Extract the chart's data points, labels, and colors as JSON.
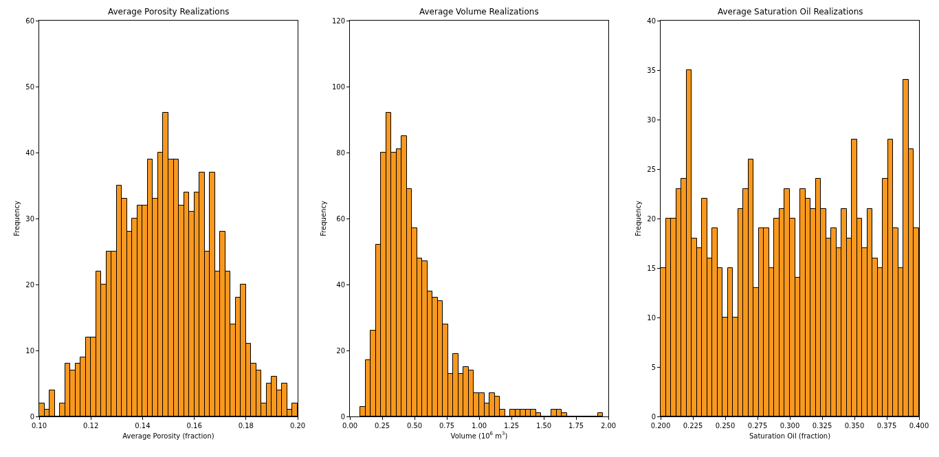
{
  "chart_data": [
    {
      "type": "histogram",
      "title": "Average Porosity Realizations",
      "xlabel": "Average Porosity (fraction)",
      "ylabel": "Frequency",
      "color": "#f8981f",
      "bins": [
        0.1,
        0.102,
        0.104,
        0.106,
        0.108,
        0.11,
        0.112,
        0.114,
        0.116,
        0.118,
        0.12,
        0.122,
        0.124,
        0.126,
        0.128,
        0.13,
        0.132,
        0.134,
        0.136,
        0.138,
        0.14,
        0.142,
        0.144,
        0.146,
        0.148,
        0.15,
        0.152,
        0.154,
        0.156,
        0.158,
        0.16,
        0.162,
        0.164,
        0.166,
        0.168,
        0.17,
        0.172,
        0.174,
        0.176,
        0.178,
        0.18,
        0.182,
        0.184,
        0.186,
        0.188,
        0.19,
        0.192,
        0.194,
        0.196,
        0.198,
        0.2
      ],
      "values": [
        2,
        1,
        4,
        0,
        2,
        8,
        7,
        8,
        9,
        12,
        12,
        22,
        20,
        25,
        25,
        35,
        33,
        28,
        30,
        32,
        32,
        39,
        33,
        40,
        46,
        39,
        39,
        32,
        34,
        31,
        34,
        37,
        25,
        37,
        22,
        28,
        22,
        14,
        18,
        20,
        11,
        8,
        7,
        2,
        5,
        6,
        4,
        5,
        1,
        2
      ],
      "xlim": [
        0.1,
        0.2
      ],
      "xticks": [
        {
          "value": 0.1,
          "label": "0.10"
        },
        0.12,
        0.14,
        0.16,
        0.18,
        {
          "value": 0.2,
          "label": "0.20"
        }
      ],
      "ylim": [
        0,
        60
      ],
      "yticks": [
        0,
        10,
        20,
        30,
        40,
        50,
        60
      ]
    },
    {
      "type": "histogram",
      "title": "Average Volume Realizations",
      "xlabel": "Volume (10$^{6}$ m$^{3}$)",
      "ylabel": "Frequency",
      "color": "#f8981f",
      "bins": [
        0.08,
        0.12,
        0.16,
        0.2,
        0.24,
        0.28,
        0.32,
        0.36,
        0.4,
        0.44,
        0.48,
        0.52,
        0.56,
        0.6,
        0.64,
        0.68,
        0.72,
        0.76,
        0.8,
        0.84,
        0.88,
        0.92,
        0.96,
        1.0,
        1.04,
        1.08,
        1.12,
        1.16,
        1.2,
        1.24,
        1.28,
        1.32,
        1.36,
        1.4,
        1.44,
        1.48,
        1.52,
        1.56,
        1.6,
        1.64,
        1.68,
        1.72,
        1.76,
        1.8,
        1.84,
        1.88,
        1.92,
        1.96
      ],
      "values": [
        3,
        17,
        26,
        52,
        80,
        92,
        80,
        81,
        85,
        69,
        57,
        48,
        47,
        38,
        36,
        35,
        28,
        13,
        19,
        13,
        15,
        14,
        7,
        7,
        4,
        7,
        6,
        2,
        0,
        2,
        2,
        2,
        2,
        2,
        1,
        0,
        0,
        2,
        2,
        1,
        0,
        0,
        0,
        0,
        0,
        0,
        1
      ],
      "xlim": [
        0,
        2
      ],
      "xticks": [
        {
          "value": 0,
          "label": "0.00"
        },
        0.25,
        {
          "value": 0.5,
          "label": "0.50"
        },
        0.75,
        {
          "value": 1,
          "label": "1.00"
        },
        1.25,
        {
          "value": 1.5,
          "label": "1.50"
        },
        1.75,
        {
          "value": 2,
          "label": "2.00"
        }
      ],
      "ylim": [
        0,
        120
      ],
      "yticks": [
        0,
        20,
        40,
        60,
        80,
        100,
        120
      ]
    },
    {
      "type": "histogram",
      "title": "Average Saturation Oil Realizations",
      "xlabel": "Saturation Oil (fraction)",
      "ylabel": "Frequency",
      "color": "#f8981f",
      "bins": [
        0.2,
        0.204,
        0.208,
        0.212,
        0.216,
        0.22,
        0.224,
        0.228,
        0.232,
        0.236,
        0.24,
        0.244,
        0.248,
        0.252,
        0.256,
        0.26,
        0.264,
        0.268,
        0.272,
        0.276,
        0.28,
        0.284,
        0.288,
        0.292,
        0.296,
        0.3,
        0.304,
        0.308,
        0.312,
        0.316,
        0.32,
        0.324,
        0.328,
        0.332,
        0.336,
        0.34,
        0.344,
        0.348,
        0.352,
        0.356,
        0.36,
        0.364,
        0.368,
        0.372,
        0.376,
        0.38,
        0.384,
        0.388,
        0.392,
        0.396,
        0.4
      ],
      "values": [
        15,
        20,
        20,
        23,
        24,
        35,
        18,
        17,
        22,
        16,
        19,
        15,
        10,
        15,
        10,
        21,
        23,
        26,
        13,
        19,
        19,
        15,
        20,
        21,
        23,
        20,
        14,
        23,
        22,
        21,
        24,
        21,
        18,
        19,
        17,
        21,
        18,
        28,
        20,
        17,
        21,
        16,
        15,
        24,
        28,
        19,
        15,
        34,
        27,
        19
      ],
      "xlim": [
        0.2,
        0.4
      ],
      "xticks": [
        {
          "value": 0.2,
          "label": "0.200"
        },
        0.225,
        {
          "value": 0.25,
          "label": "0.250"
        },
        0.275,
        {
          "value": 0.3,
          "label": "0.300"
        },
        0.325,
        {
          "value": 0.35,
          "label": "0.350"
        },
        0.375,
        {
          "value": 0.4,
          "label": "0.400"
        }
      ],
      "ylim": [
        0,
        40
      ],
      "yticks": [
        0,
        5,
        10,
        15,
        20,
        25,
        30,
        35,
        40
      ]
    }
  ]
}
